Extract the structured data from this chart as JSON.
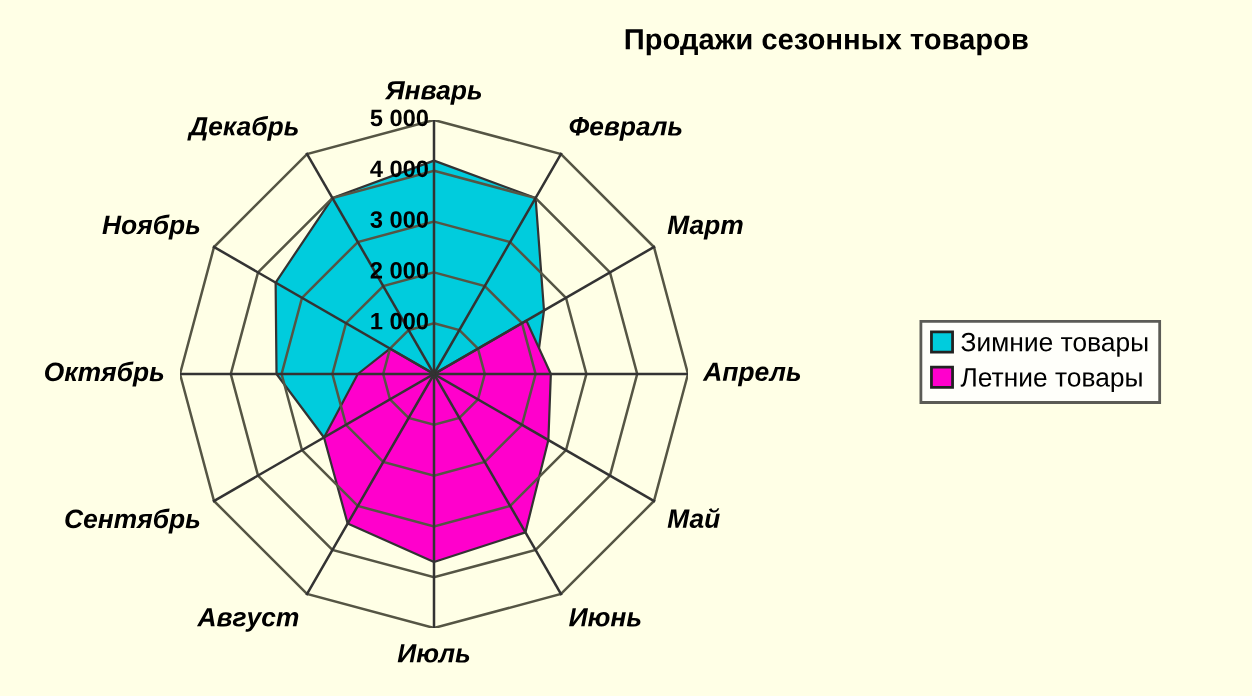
{
  "chart_data": {
    "type": "radar",
    "title": "Продажи сезонных товаров",
    "categories": [
      "Январь",
      "Февраль",
      "Март",
      "Апрель",
      "Май",
      "Июнь",
      "Июль",
      "Август",
      "Сентябрь",
      "Октябрь",
      "Ноябрь",
      "Декабрь"
    ],
    "series": [
      {
        "name": "Зимние товары",
        "color": "#00ccdd",
        "values": [
          4200,
          4000,
          2500,
          2000,
          null,
          null,
          null,
          null,
          2500,
          3100,
          3600,
          4000
        ]
      },
      {
        "name": "Летние товары",
        "color": "#ff00cc",
        "values": [
          0,
          0,
          2100,
          2300,
          2600,
          3600,
          3700,
          3400,
          2500,
          1500,
          1000,
          0
        ]
      }
    ],
    "ylim": [
      0,
      5000
    ],
    "yticks": [
      {
        "value": 1000,
        "label": "1 000"
      },
      {
        "value": 2000,
        "label": "2 000"
      },
      {
        "value": 3000,
        "label": "3 000"
      },
      {
        "value": 4000,
        "label": "4 000"
      },
      {
        "value": 5000,
        "label": "5 000"
      }
    ],
    "grid": true,
    "legend": "right"
  }
}
